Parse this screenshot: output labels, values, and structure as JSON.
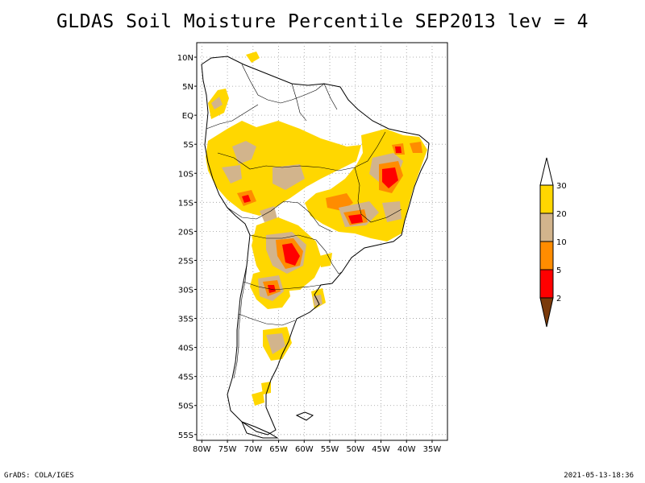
{
  "title": "GLDAS Soil Moisture Percentile SEP2013 lev = 4",
  "footer": {
    "left": "GrADS: COLA/IGES",
    "right": "2021-05-13-18:36"
  },
  "lat_labels": [
    "10N",
    "5N",
    "EQ",
    "5S",
    "10S",
    "15S",
    "20S",
    "25S",
    "30S",
    "35S",
    "40S",
    "45S",
    "50S",
    "55S"
  ],
  "lon_labels": [
    "80W",
    "75W",
    "70W",
    "65W",
    "60W",
    "55W",
    "50W",
    "45W",
    "40W",
    "35W"
  ],
  "colorbar": {
    "labels": [
      "30",
      "20",
      "10",
      "5",
      "2"
    ],
    "colors": {
      "below_2": "#7a3a0a",
      "2_5": "#ff0000",
      "5_10": "#ff8c00",
      "10_20": "#d2b48c",
      "20_30": "#ffd700",
      "above_30": "#ffffff"
    }
  },
  "colors": {
    "land_outline": "#000000",
    "grid": "#9a9a9a"
  }
}
